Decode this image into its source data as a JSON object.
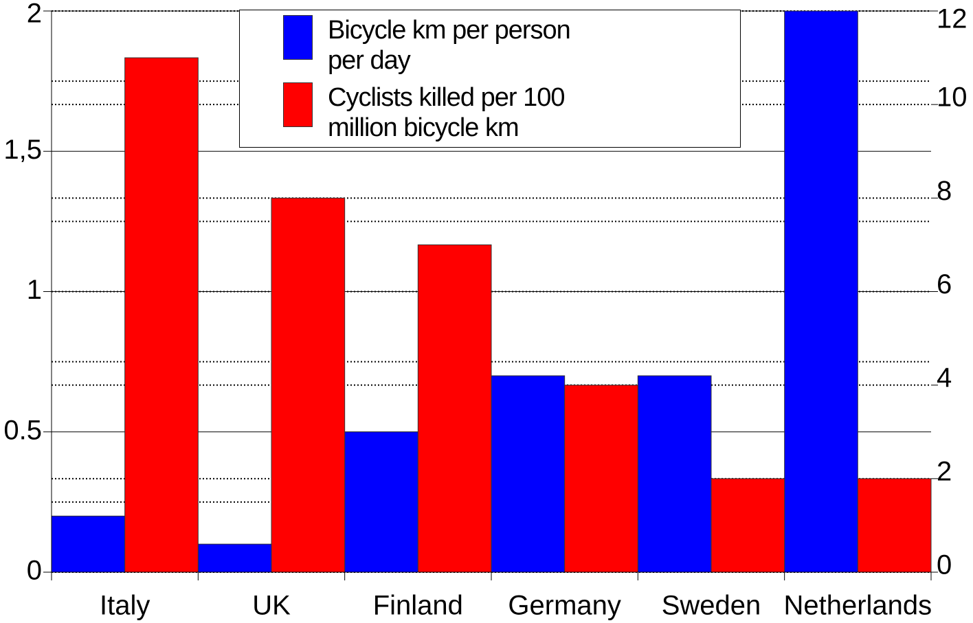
{
  "chart_data": {
    "type": "bar",
    "categories": [
      "Italy",
      "UK",
      "Finland",
      "Germany",
      "Sweden",
      "Netherlands"
    ],
    "series": [
      {
        "name": "Bicycle km per person per day",
        "color": "#0000ff",
        "values": [
          0.2,
          0.1,
          0.5,
          0.7,
          0.7,
          2
        ]
      },
      {
        "name": "Cyclists killed per 100 million bicycle km",
        "color": "#ff0000",
        "axis": "y2",
        "values": [
          11,
          8,
          7,
          4,
          2,
          2
        ]
      }
    ],
    "ylim": [
      0,
      2
    ],
    "yticks": [
      0,
      0.5,
      1,
      {
        "value": 1.5,
        "label": "1,5"
      },
      2
    ],
    "y_minor_ticks": [
      0.25,
      0.75,
      1.25,
      1.75
    ],
    "y2lim": [
      0,
      12
    ],
    "y2ticks": [
      0,
      2,
      4,
      6,
      8,
      10,
      12
    ],
    "grid": true,
    "legend": "top"
  }
}
